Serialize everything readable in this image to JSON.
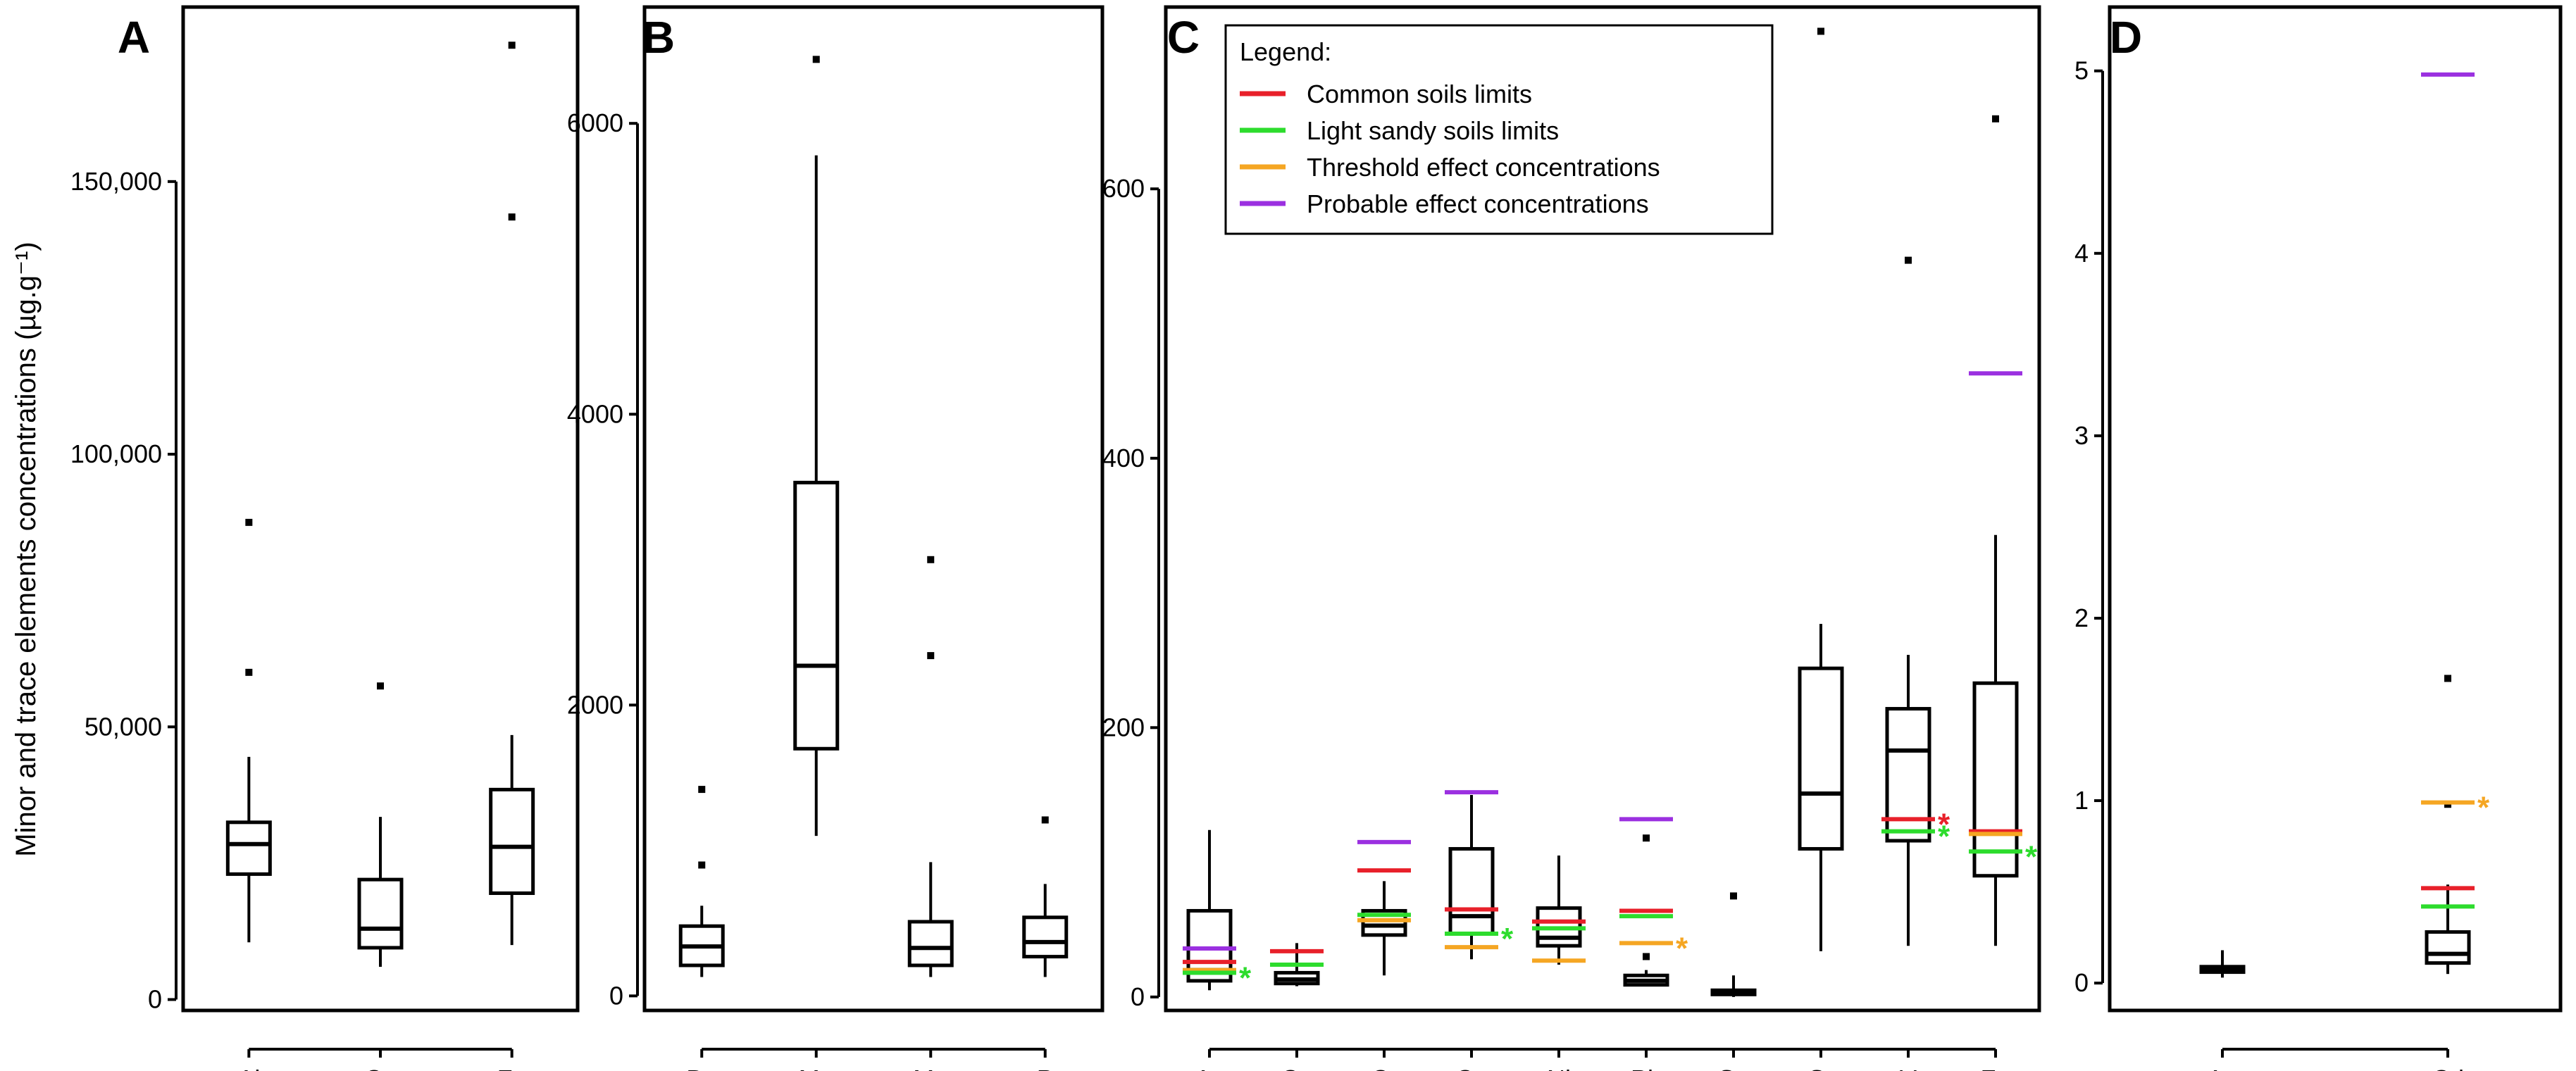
{
  "ylabel": "Minor and trace elements concentrations (µg.g⁻¹)",
  "legend": {
    "title": "Legend:",
    "items": [
      {
        "label": "Common soils limits",
        "color": "#e8202a"
      },
      {
        "label": "Light sandy soils limits",
        "color": "#2ddc2d"
      },
      {
        "label": "Threshold effect concentrations",
        "color": "#f5a623"
      },
      {
        "label": "Probable effect concentrations",
        "color": "#9b30e0"
      }
    ]
  },
  "chart_data": [
    {
      "panel": "A",
      "type": "box",
      "ylim": [
        -2000,
        182000
      ],
      "yticks": [
        0,
        50000,
        100000,
        150000
      ],
      "ytick_labels": [
        "0",
        "50,000",
        "100,000",
        "150,000"
      ],
      "categories": [
        "Al",
        "Ca",
        "Fe"
      ],
      "boxes": [
        {
          "category": "Al",
          "whisker_low": 10500,
          "q1": 23000,
          "median": 28500,
          "q3": 32500,
          "whisker_high": 44500,
          "outliers": [
            60000,
            87500
          ]
        },
        {
          "category": "Ca",
          "whisker_low": 6000,
          "q1": 9500,
          "median": 13000,
          "q3": 22000,
          "whisker_high": 33500,
          "outliers": [
            57500
          ]
        },
        {
          "category": "Fe",
          "whisker_low": 10000,
          "q1": 19500,
          "median": 28000,
          "q3": 38500,
          "whisker_high": 48500,
          "outliers": [
            143500,
            175000
          ]
        }
      ],
      "reference_lines": []
    },
    {
      "panel": "B",
      "type": "box",
      "ylim": [
        -100,
        6800
      ],
      "yticks": [
        0,
        2000,
        4000,
        6000
      ],
      "ytick_labels": [
        "0",
        "2000",
        "4000",
        "6000"
      ],
      "categories": [
        "Ba",
        "Mg",
        "Mn",
        "P"
      ],
      "boxes": [
        {
          "category": "Ba",
          "whisker_low": 130,
          "q1": 210,
          "median": 340,
          "q3": 480,
          "whisker_high": 620,
          "outliers": [
            900,
            1420
          ]
        },
        {
          "category": "Mg",
          "whisker_low": 1100,
          "q1": 1700,
          "median": 2270,
          "q3": 3530,
          "whisker_high": 5780,
          "outliers": [
            6440
          ]
        },
        {
          "category": "Mn",
          "whisker_low": 130,
          "q1": 210,
          "median": 330,
          "q3": 510,
          "whisker_high": 920,
          "outliers": [
            2340,
            3000
          ]
        },
        {
          "category": "P",
          "whisker_low": 130,
          "q1": 270,
          "median": 370,
          "q3": 540,
          "whisker_high": 770,
          "outliers": [
            1210
          ]
        }
      ],
      "reference_lines": []
    },
    {
      "panel": "C",
      "type": "box",
      "ylim": [
        -10,
        735
      ],
      "yticks": [
        0,
        200,
        400,
        600
      ],
      "ytick_labels": [
        "0",
        "200",
        "400",
        "600"
      ],
      "categories": [
        "As",
        "Co",
        "Cr",
        "Cu",
        "Ni",
        "Pb",
        "Se",
        "Sr",
        "V",
        "Zn"
      ],
      "boxes": [
        {
          "category": "As",
          "whisker_low": 5,
          "q1": 12,
          "median": 20,
          "q3": 64,
          "whisker_high": 124,
          "outliers": []
        },
        {
          "category": "Co",
          "whisker_low": 8,
          "q1": 10,
          "median": 13,
          "q3": 18,
          "whisker_high": 40,
          "outliers": []
        },
        {
          "category": "Cr",
          "whisker_low": 16,
          "q1": 46,
          "median": 53,
          "q3": 64,
          "whisker_high": 86,
          "outliers": []
        },
        {
          "category": "Cu",
          "whisker_low": 28,
          "q1": 47,
          "median": 60,
          "q3": 110,
          "whisker_high": 150,
          "outliers": []
        },
        {
          "category": "Ni",
          "whisker_low": 24,
          "q1": 38,
          "median": 44,
          "q3": 66,
          "whisker_high": 105,
          "outliers": []
        },
        {
          "category": "Pb",
          "whisker_low": 8,
          "q1": 9,
          "median": 12,
          "q3": 16,
          "whisker_high": 20,
          "outliers": [
            30,
            118
          ]
        },
        {
          "category": "Se",
          "whisker_low": 0,
          "q1": 2,
          "median": 3,
          "q3": 5,
          "whisker_high": 16,
          "outliers": [
            75
          ]
        },
        {
          "category": "Sr",
          "whisker_low": 34,
          "q1": 110,
          "median": 151,
          "q3": 244,
          "whisker_high": 277,
          "outliers": [
            717
          ]
        },
        {
          "category": "V",
          "whisker_low": 38,
          "q1": 116,
          "median": 183,
          "q3": 214,
          "whisker_high": 254,
          "outliers": [
            547
          ]
        },
        {
          "category": "Zn",
          "whisker_low": 38,
          "q1": 90,
          "median": 122,
          "q3": 233,
          "whisker_high": 343,
          "outliers": [
            652
          ]
        }
      ],
      "reference_lines": [
        {
          "category": "As",
          "kind": "Probable effect concentrations",
          "value": 36
        },
        {
          "category": "As",
          "kind": "Common soils limits",
          "value": 26
        },
        {
          "category": "As",
          "kind": "Threshold effect concentrations",
          "value": 20
        },
        {
          "category": "As",
          "kind": "Light sandy soils limits",
          "value": 18,
          "asterisk": true
        },
        {
          "category": "Co",
          "kind": "Common soils limits",
          "value": 34
        },
        {
          "category": "Co",
          "kind": "Light sandy soils limits",
          "value": 24
        },
        {
          "category": "Cr",
          "kind": "Probable effect concentrations",
          "value": 115
        },
        {
          "category": "Cr",
          "kind": "Common soils limits",
          "value": 94
        },
        {
          "category": "Cr",
          "kind": "Light sandy soils limits",
          "value": 61
        },
        {
          "category": "Cr",
          "kind": "Threshold effect concentrations",
          "value": 57
        },
        {
          "category": "Cu",
          "kind": "Probable effect concentrations",
          "value": 152
        },
        {
          "category": "Cu",
          "kind": "Common soils limits",
          "value": 65
        },
        {
          "category": "Cu",
          "kind": "Light sandy soils limits",
          "value": 47,
          "asterisk": true
        },
        {
          "category": "Cu",
          "kind": "Threshold effect concentrations",
          "value": 37
        },
        {
          "category": "Ni",
          "kind": "Common soils limits",
          "value": 56
        },
        {
          "category": "Ni",
          "kind": "Light sandy soils limits",
          "value": 51
        },
        {
          "category": "Ni",
          "kind": "Threshold effect concentrations",
          "value": 27
        },
        {
          "category": "Pb",
          "kind": "Probable effect concentrations",
          "value": 132
        },
        {
          "category": "Pb",
          "kind": "Common soils limits",
          "value": 64
        },
        {
          "category": "Pb",
          "kind": "Light sandy soils limits",
          "value": 60
        },
        {
          "category": "Pb",
          "kind": "Threshold effect concentrations",
          "value": 40,
          "asterisk": true
        },
        {
          "category": "V",
          "kind": "Common soils limits",
          "value": 132,
          "asterisk": true
        },
        {
          "category": "V",
          "kind": "Light sandy soils limits",
          "value": 123,
          "asterisk": true
        },
        {
          "category": "Zn",
          "kind": "Probable effect concentrations",
          "value": 463
        },
        {
          "category": "Zn",
          "kind": "Common soils limits",
          "value": 123
        },
        {
          "category": "Zn",
          "kind": "Threshold effect concentrations",
          "value": 121
        },
        {
          "category": "Zn",
          "kind": "Light sandy soils limits",
          "value": 108,
          "asterisk": true
        }
      ]
    },
    {
      "panel": "D",
      "type": "box",
      "ylim": [
        -0.15,
        5.35
      ],
      "yticks": [
        0,
        1,
        2,
        3,
        4,
        5
      ],
      "ytick_labels": [
        "0",
        "1",
        "2",
        "3",
        "4",
        "5"
      ],
      "categories": [
        "Ag",
        "Cd"
      ],
      "boxes": [
        {
          "category": "Ag",
          "whisker_low": 0.03,
          "q1": 0.06,
          "median": 0.075,
          "q3": 0.09,
          "whisker_high": 0.18,
          "outliers": []
        },
        {
          "category": "Cd",
          "whisker_low": 0.05,
          "q1": 0.11,
          "median": 0.16,
          "q3": 0.28,
          "whisker_high": 0.54,
          "outliers": [
            0.98,
            1.67
          ]
        },
        {
          "category": "Cd",
          "role": "marker"
        }
      ],
      "reference_lines": [
        {
          "category": "Cd",
          "kind": "Probable effect concentrations",
          "value": 4.98
        },
        {
          "category": "Cd",
          "kind": "Threshold effect concentrations",
          "value": 0.99,
          "asterisk": true
        },
        {
          "category": "Cd",
          "kind": "Common soils limits",
          "value": 0.52
        },
        {
          "category": "Cd",
          "kind": "Light sandy soils limits",
          "value": 0.42
        }
      ]
    }
  ]
}
